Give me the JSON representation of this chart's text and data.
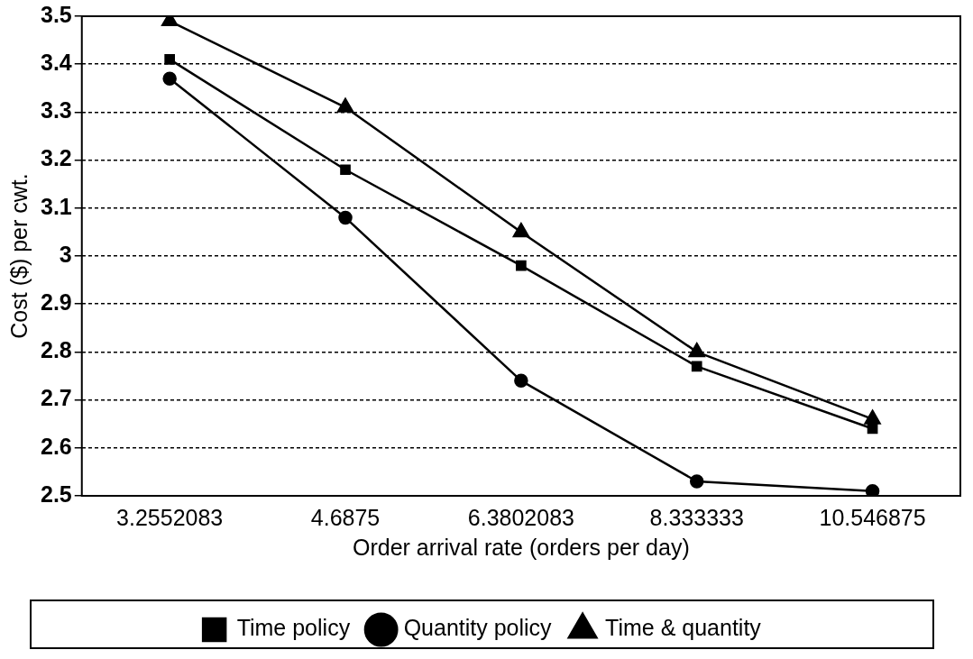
{
  "chart_data": {
    "type": "line",
    "xlabel": "Order arrival rate (orders per day)",
    "ylabel": "Cost ($) per cwt.",
    "categories": [
      "3.2552083",
      "4.6875",
      "6.3802083",
      "8.333333",
      "10.546875"
    ],
    "series": [
      {
        "name": "Time policy",
        "color": "#000000",
        "marker": "square",
        "values": [
          3.41,
          3.18,
          2.98,
          2.77,
          2.64
        ]
      },
      {
        "name": "Quantity policy",
        "color": "#000000",
        "marker": "circle",
        "values": [
          3.37,
          3.08,
          2.74,
          2.53,
          2.51
        ]
      },
      {
        "name": "Time & quantity",
        "color": "#000000",
        "marker": "triangle",
        "values": [
          3.49,
          3.31,
          3.05,
          2.8,
          2.66
        ]
      }
    ],
    "ylim": [
      2.5,
      3.5
    ],
    "yticks": [
      2.5,
      2.6,
      2.7,
      2.8,
      2.9,
      3,
      3.1,
      3.2,
      3.3,
      3.4,
      3.5
    ],
    "grid": "y",
    "legend": "bottom",
    "line_style": "solid"
  }
}
